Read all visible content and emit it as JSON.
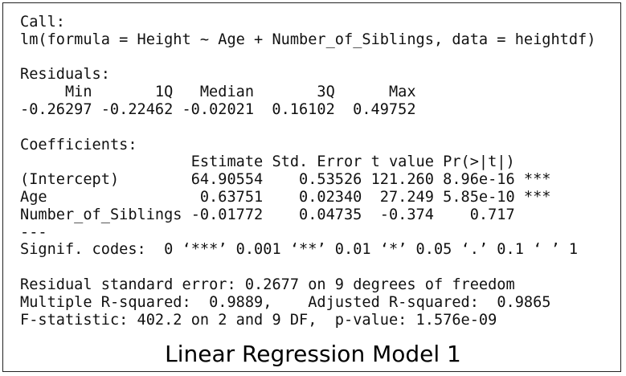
{
  "call": {
    "label": "Call:",
    "formula": "lm(formula = Height ~ Age + Number_of_Siblings, data = heightdf)"
  },
  "residuals": {
    "label": "Residuals:",
    "headers": [
      "Min",
      "1Q",
      "Median",
      "3Q",
      "Max"
    ],
    "values": [
      "-0.26297",
      "-0.22462",
      "-0.02021",
      "0.16102",
      "0.49752"
    ]
  },
  "coefficients": {
    "label": "Coefficients:",
    "headers": [
      "Estimate",
      "Std. Error",
      "t value",
      "Pr(>|t|)"
    ],
    "rows": [
      [
        "(Intercept)",
        "64.90554",
        "0.53526",
        "121.260",
        "8.96e-16",
        "***"
      ],
      [
        "Age",
        "0.63751",
        "0.02340",
        "27.249",
        "5.85e-10",
        "***"
      ],
      [
        "Number_of_Siblings",
        "-0.01772",
        "0.04735",
        "-0.374",
        "0.717"
      ]
    ]
  },
  "separator": "---",
  "signif_codes": "Signif. codes:  0 ‘***’ 0.001 ‘**’ 0.01 ‘*’ 0.05 ‘.’ 0.1 ‘ ’ 1",
  "summary": [
    "Residual standard error: 0.2677 on 9 degrees of freedom",
    "Multiple R-squared:  0.9889,\tAdjusted R-squared:  0.9865",
    "F-statistic: 402.2 on 2 and 9 DF,  p-value: 1.576e-09"
  ],
  "caption": "Linear Regression Model 1"
}
